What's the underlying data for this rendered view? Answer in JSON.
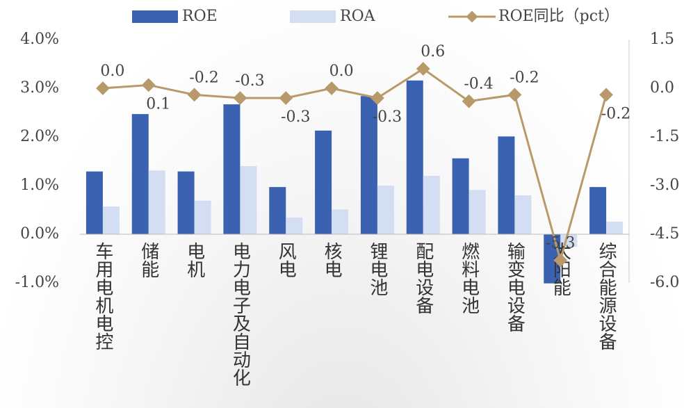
{
  "chart_data": {
    "type": "bar",
    "categories": [
      "车用电机电控",
      "储能",
      "电机",
      "电力电子及自动化",
      "风电",
      "核电",
      "锂电池",
      "配电设备",
      "燃料电池",
      "输变电设备",
      "太阳能",
      "综合能源设备"
    ],
    "series": [
      {
        "name": "ROE",
        "color": "#3a62b0",
        "values": [
          1.29,
          2.47,
          1.29,
          2.67,
          0.97,
          2.13,
          2.84,
          3.16,
          1.56,
          2.01,
          -1.01,
          0.97
        ]
      },
      {
        "name": "ROA",
        "color": "#d3def2",
        "values": [
          0.57,
          1.31,
          0.69,
          1.4,
          0.34,
          0.51,
          1.0,
          1.2,
          0.91,
          0.8,
          -0.26,
          0.26
        ]
      },
      {
        "name": "ROE同比（pct）",
        "type": "line",
        "axis": "y2",
        "color": "#b89a6a",
        "values": [
          0.0,
          0.1,
          -0.2,
          -0.3,
          -0.3,
          0.0,
          -0.3,
          0.6,
          -0.4,
          -0.2,
          -5.3,
          -0.2
        ],
        "value_labels": [
          "0.0",
          "0.1",
          "-0.2",
          "-0.3",
          "-0.3",
          "0.0",
          "-0.3",
          "0.6",
          "-0.4",
          "-0.2",
          "-5.3",
          "-0.2"
        ]
      }
    ],
    "ylim": [
      -1,
      4
    ],
    "yticks": [
      {
        "value": 4,
        "label": "4.0%"
      },
      {
        "value": 3,
        "label": "3.0%"
      },
      {
        "value": 2,
        "label": "2.0%"
      },
      {
        "value": 1,
        "label": "1.0%"
      },
      {
        "value": 0,
        "label": "0.0%"
      },
      {
        "value": -1,
        "label": "-1.0%"
      }
    ],
    "y2lim": [
      -6,
      1.5
    ],
    "y2ticks": [
      {
        "value": 1.5,
        "label": "1.5"
      },
      {
        "value": 0,
        "label": "0.0"
      },
      {
        "value": -1.5,
        "label": "-1.5"
      },
      {
        "value": -3,
        "label": "-3.0"
      },
      {
        "value": -4.5,
        "label": "-4.5"
      },
      {
        "value": -6,
        "label": "-6.0"
      }
    ],
    "legend": "top"
  }
}
